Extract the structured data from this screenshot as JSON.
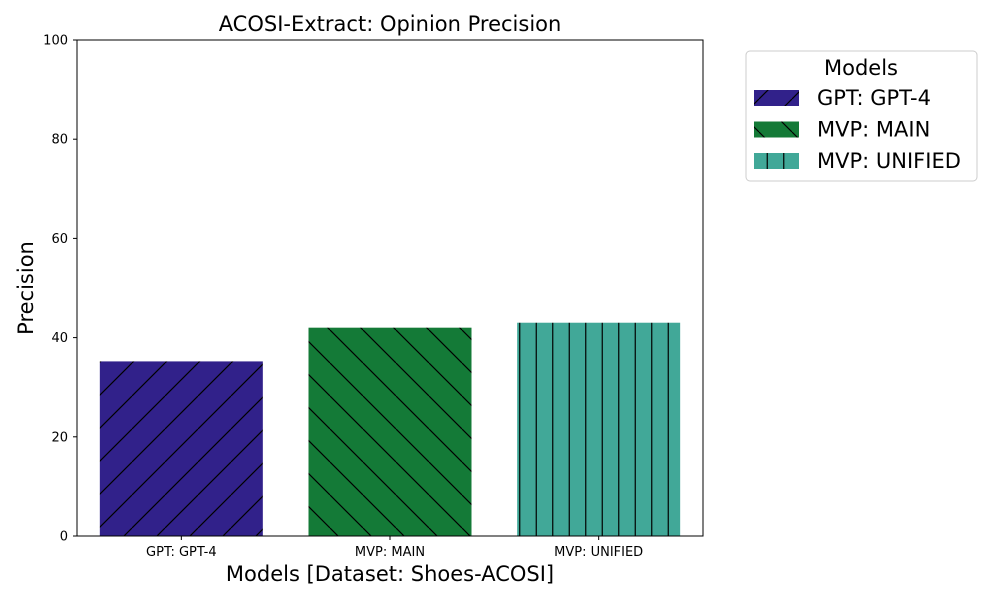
{
  "chart_data": {
    "type": "bar",
    "title": "ACOSI-Extract: Opinion Precision",
    "xlabel": "Models [Dataset: Shoes-ACOSI]",
    "ylabel": "Precision",
    "ylim": [
      0,
      100
    ],
    "yticks": [
      "0",
      "20",
      "40",
      "60",
      "80",
      "100"
    ],
    "categories": [
      "GPT: GPT-4",
      "MVP: MAIN",
      "MVP: UNIFIED"
    ],
    "values": [
      35.2,
      42.0,
      43.0
    ],
    "colors": [
      "#31218a",
      "#147a37",
      "#41a898"
    ],
    "hatches": [
      "/",
      "\\",
      "|"
    ],
    "grid": false,
    "legend": {
      "title": "Models",
      "placement": "outside-top-right",
      "entries": [
        "GPT: GPT-4",
        "MVP: MAIN",
        "MVP: UNIFIED"
      ]
    }
  }
}
